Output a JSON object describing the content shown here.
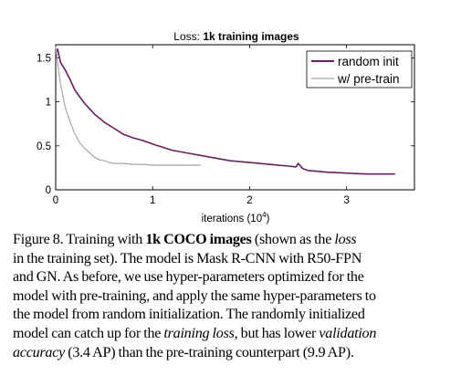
{
  "chart_data": {
    "type": "line",
    "title": "Loss: 1k training images",
    "title_parts": {
      "prefix": "Loss: ",
      "bold": "1k training images"
    },
    "xlabel": "iterations (10^4)",
    "xlabel_parts": {
      "base": "iterations (10",
      "exp": "4",
      "close": ")"
    },
    "ylabel": "",
    "xlim": [
      0,
      3.7
    ],
    "ylim": [
      0,
      1.65
    ],
    "xticks": [
      0,
      1,
      2,
      3
    ],
    "xtick_labels": [
      "0",
      "1",
      "2",
      "3"
    ],
    "yticks": [
      0,
      0.5,
      1,
      1.5
    ],
    "ytick_labels": [
      "0",
      "0.5",
      "1",
      "1.5"
    ],
    "grid": false,
    "legend_position": "top-right",
    "series": [
      {
        "name": "random init",
        "color": "#6b1f5e",
        "x": [
          0,
          0.02,
          0.05,
          0.1,
          0.15,
          0.2,
          0.3,
          0.4,
          0.5,
          0.6,
          0.7,
          0.8,
          0.9,
          1.0,
          1.2,
          1.4,
          1.6,
          1.8,
          2.0,
          2.2,
          2.4,
          2.48,
          2.5,
          2.55,
          2.6,
          2.8,
          3.0,
          3.2,
          3.4,
          3.5
        ],
        "values": [
          1.55,
          1.6,
          1.45,
          1.36,
          1.25,
          1.13,
          0.98,
          0.86,
          0.77,
          0.7,
          0.63,
          0.59,
          0.56,
          0.52,
          0.45,
          0.41,
          0.37,
          0.33,
          0.31,
          0.29,
          0.27,
          0.26,
          0.3,
          0.24,
          0.22,
          0.2,
          0.19,
          0.18,
          0.18,
          0.18
        ]
      },
      {
        "name": "w/ pre-train",
        "color": "#a8a8a8",
        "x": [
          0,
          0.02,
          0.05,
          0.1,
          0.15,
          0.2,
          0.25,
          0.3,
          0.35,
          0.4,
          0.45,
          0.5,
          0.55,
          0.6,
          0.7,
          0.8,
          0.9,
          1.0,
          1.2,
          1.4,
          1.5
        ],
        "values": [
          1.63,
          1.45,
          1.2,
          0.93,
          0.77,
          0.63,
          0.53,
          0.47,
          0.42,
          0.37,
          0.34,
          0.33,
          0.31,
          0.3,
          0.3,
          0.29,
          0.29,
          0.28,
          0.28,
          0.28,
          0.28
        ]
      }
    ]
  },
  "caption": {
    "lines": [
      [
        {
          "t": "Figure 8.  Training with "
        },
        {
          "t": "1k COCO images",
          "s": "b"
        },
        {
          "t": " (shown as the "
        },
        {
          "t": "loss",
          "s": "i"
        }
      ],
      [
        {
          "t": "in the training set).  The model is Mask R-CNN with R50-FPN"
        }
      ],
      [
        {
          "t": "and GN.  As before, we use hyper-parameters optimized for the"
        }
      ],
      [
        {
          "t": "model with pre-training, and apply the same hyper-parameters to"
        }
      ],
      [
        {
          "t": "the model from random initialization.  The randomly initialized"
        }
      ],
      [
        {
          "t": "model can catch up for the "
        },
        {
          "t": "training loss",
          "s": "i"
        },
        {
          "t": ", but has lower "
        },
        {
          "t": "validation",
          "s": "i"
        }
      ],
      [
        {
          "t": "accuracy",
          "s": "i"
        },
        {
          "t": " (3.4 AP) than the pre-training counterpart (9.9 AP)."
        }
      ]
    ]
  }
}
